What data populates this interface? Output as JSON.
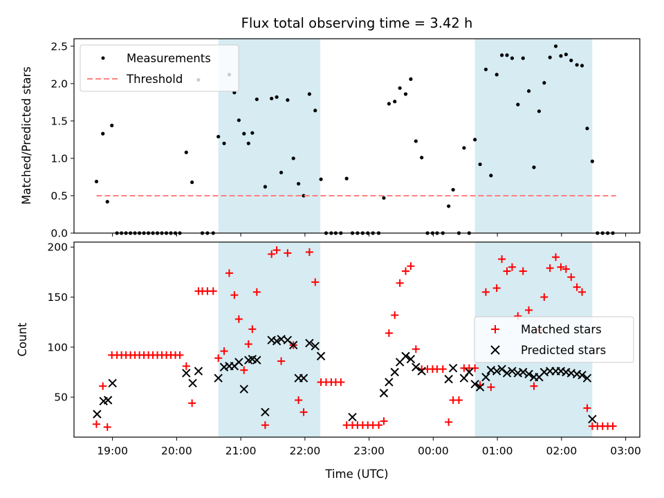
{
  "figure": {
    "title": "Flux total observing time = 3.42 h",
    "xlabel": "Time (UTC)",
    "x_tick_labels": [
      "19:00",
      "20:00",
      "21:00",
      "22:00",
      "23:00",
      "00:00",
      "01:00",
      "02:00",
      "03:00"
    ],
    "x_tick_hours": [
      19,
      20,
      21,
      22,
      23,
      24,
      25,
      26,
      27
    ],
    "xlim": [
      18.4,
      27.22
    ],
    "shaded_spans": [
      [
        20.65,
        22.24
      ],
      [
        24.65,
        26.48
      ]
    ],
    "colors": {
      "shade": "#add8e6",
      "threshold": "#ff7f7f",
      "measurement": "#000000",
      "matched": "#ff0000",
      "predicted": "#000000"
    }
  },
  "chart_data": [
    {
      "type": "scatter",
      "panel": "top",
      "ylabel": "Matched/Predicted stars",
      "ylim": [
        0,
        2.6
      ],
      "y_ticks": [
        0.0,
        0.5,
        1.0,
        1.5,
        2.0,
        2.5
      ],
      "y_tick_labels": [
        "0.0",
        "0.5",
        "1.0",
        "1.5",
        "2.0",
        "2.5"
      ],
      "legend_placement": "top-left",
      "series": [
        {
          "name": "Measurements",
          "marker": "dot",
          "x": [
            18.75,
            18.85,
            18.92,
            18.99,
            19.07,
            19.14,
            19.21,
            19.28,
            19.35,
            19.42,
            19.49,
            19.56,
            19.63,
            19.7,
            19.77,
            19.84,
            19.91,
            19.98,
            20.05,
            20.15,
            20.24,
            20.34,
            20.4,
            20.48,
            20.57,
            20.65,
            20.74,
            20.82,
            20.9,
            20.97,
            21.05,
            21.12,
            21.18,
            21.25,
            21.38,
            21.48,
            21.56,
            21.63,
            21.73,
            21.82,
            21.9,
            21.98,
            22.07,
            22.16,
            22.25,
            22.33,
            22.41,
            22.48,
            22.56,
            22.65,
            22.74,
            22.82,
            22.9,
            22.98,
            23.06,
            23.15,
            23.23,
            23.31,
            23.4,
            23.48,
            23.57,
            23.65,
            23.73,
            23.82,
            23.91,
            23.99,
            24.06,
            24.15,
            24.24,
            24.31,
            24.4,
            24.48,
            24.56,
            24.65,
            24.73,
            24.82,
            24.9,
            24.99,
            25.07,
            25.15,
            25.23,
            25.32,
            25.4,
            25.49,
            25.57,
            25.65,
            25.73,
            25.82,
            25.91,
            25.99,
            26.07,
            26.15,
            26.24,
            26.32,
            26.4,
            26.48,
            26.56,
            26.64,
            26.72,
            26.8
          ],
          "y": [
            0.69,
            1.33,
            0.42,
            1.44,
            0,
            0,
            0,
            0,
            0,
            0,
            0,
            0,
            0,
            0,
            0,
            0,
            0,
            0,
            0,
            1.08,
            0.68,
            2.05,
            0,
            0,
            0,
            1.29,
            1.2,
            2.12,
            1.88,
            1.51,
            1.33,
            1.2,
            1.34,
            1.79,
            0.62,
            1.8,
            1.82,
            0.81,
            1.78,
            1.0,
            0.66,
            0.5,
            1.86,
            1.64,
            0.72,
            0,
            0,
            0,
            0,
            0.73,
            0,
            0,
            0,
            0,
            0,
            0,
            0.47,
            1.73,
            1.76,
            1.94,
            1.86,
            2.06,
            1.23,
            1.01,
            0,
            0,
            0,
            0,
            0.36,
            0.58,
            0,
            1.14,
            0,
            1.25,
            0.92,
            2.19,
            0.77,
            2.12,
            2.38,
            2.38,
            2.34,
            1.72,
            2.34,
            1.9,
            0.88,
            1.63,
            2.01,
            2.35,
            2.5,
            2.37,
            2.39,
            2.31,
            2.25,
            2.24,
            1.4,
            0.96,
            0,
            0,
            0,
            0
          ]
        },
        {
          "name": "Threshold",
          "marker": "dashed-line",
          "x": [
            18.75,
            26.85
          ],
          "y": [
            0.5,
            0.5
          ]
        }
      ]
    },
    {
      "type": "scatter",
      "panel": "bottom",
      "ylabel": "Count",
      "ylim": [
        10,
        205
      ],
      "y_ticks": [
        50,
        100,
        150,
        200
      ],
      "y_tick_labels": [
        "50",
        "100",
        "150",
        "200"
      ],
      "legend_placement": "center-right",
      "series": [
        {
          "name": "Matched stars",
          "marker": "plus",
          "x": [
            18.75,
            18.85,
            18.92,
            18.99,
            19.07,
            19.14,
            19.21,
            19.28,
            19.35,
            19.42,
            19.49,
            19.56,
            19.63,
            19.7,
            19.77,
            19.84,
            19.91,
            19.98,
            20.05,
            20.15,
            20.24,
            20.34,
            20.4,
            20.48,
            20.57,
            20.65,
            20.74,
            20.82,
            20.9,
            20.97,
            21.05,
            21.12,
            21.18,
            21.25,
            21.38,
            21.48,
            21.56,
            21.63,
            21.73,
            21.82,
            21.9,
            21.98,
            22.07,
            22.16,
            22.25,
            22.33,
            22.41,
            22.48,
            22.56,
            22.65,
            22.74,
            22.82,
            22.9,
            22.98,
            23.06,
            23.15,
            23.23,
            23.31,
            23.4,
            23.48,
            23.57,
            23.65,
            23.73,
            23.82,
            23.91,
            23.99,
            24.06,
            24.15,
            24.24,
            24.31,
            24.4,
            24.48,
            24.56,
            24.65,
            24.73,
            24.82,
            24.9,
            24.99,
            25.07,
            25.15,
            25.23,
            25.32,
            25.4,
            25.49,
            25.57,
            25.65,
            25.73,
            25.82,
            25.91,
            25.99,
            26.07,
            26.15,
            26.24,
            26.32,
            26.4,
            26.48,
            26.56,
            26.64,
            26.72,
            26.8
          ],
          "y": [
            23,
            61,
            20,
            92,
            92,
            92,
            92,
            92,
            92,
            92,
            92,
            92,
            92,
            92,
            92,
            92,
            92,
            92,
            92,
            81,
            44,
            156,
            156,
            156,
            156,
            89,
            96,
            174,
            152,
            128,
            77,
            103,
            118,
            155,
            22,
            193,
            197,
            86,
            194,
            102,
            47,
            35,
            195,
            165,
            65,
            65,
            65,
            65,
            65,
            22,
            22,
            22,
            22,
            22,
            22,
            22,
            26,
            114,
            132,
            164,
            176,
            181,
            98,
            78,
            78,
            78,
            78,
            78,
            25,
            47,
            47,
            79,
            79,
            79,
            62,
            155,
            60,
            159,
            188,
            176,
            180,
            131,
            176,
            137,
            61,
            117,
            150,
            179,
            190,
            180,
            178,
            170,
            160,
            155,
            39,
            21,
            21,
            21,
            21,
            21
          ]
        },
        {
          "name": "Predicted stars",
          "marker": "x",
          "x": [
            18.76,
            18.86,
            18.93,
            19.0,
            20.15,
            20.25,
            20.34,
            20.65,
            20.74,
            20.82,
            20.9,
            20.97,
            21.05,
            21.12,
            21.18,
            21.25,
            21.38,
            21.48,
            21.56,
            21.63,
            21.73,
            21.82,
            21.9,
            21.98,
            22.07,
            22.16,
            22.25,
            22.74,
            23.23,
            23.31,
            23.4,
            23.48,
            23.57,
            23.65,
            23.73,
            23.82,
            24.24,
            24.31,
            24.48,
            24.56,
            24.65,
            24.73,
            24.82,
            24.9,
            24.99,
            25.07,
            25.15,
            25.23,
            25.32,
            25.4,
            25.49,
            25.57,
            25.65,
            25.73,
            25.82,
            25.91,
            25.99,
            26.07,
            26.15,
            26.24,
            26.32,
            26.4,
            26.48
          ],
          "y": [
            33,
            46,
            47,
            64,
            74,
            64,
            76,
            69,
            80,
            81,
            81,
            85,
            58,
            87,
            88,
            87,
            35,
            107,
            106,
            108,
            107,
            102,
            69,
            69,
            104,
            101,
            91,
            30,
            54,
            65,
            75,
            85,
            91,
            88,
            80,
            76,
            68,
            79,
            69,
            75,
            63,
            60,
            70,
            77,
            76,
            78,
            74,
            76,
            74,
            75,
            73,
            70,
            70,
            75,
            76,
            76,
            76,
            75,
            74,
            73,
            72,
            69,
            28
          ]
        }
      ]
    }
  ]
}
